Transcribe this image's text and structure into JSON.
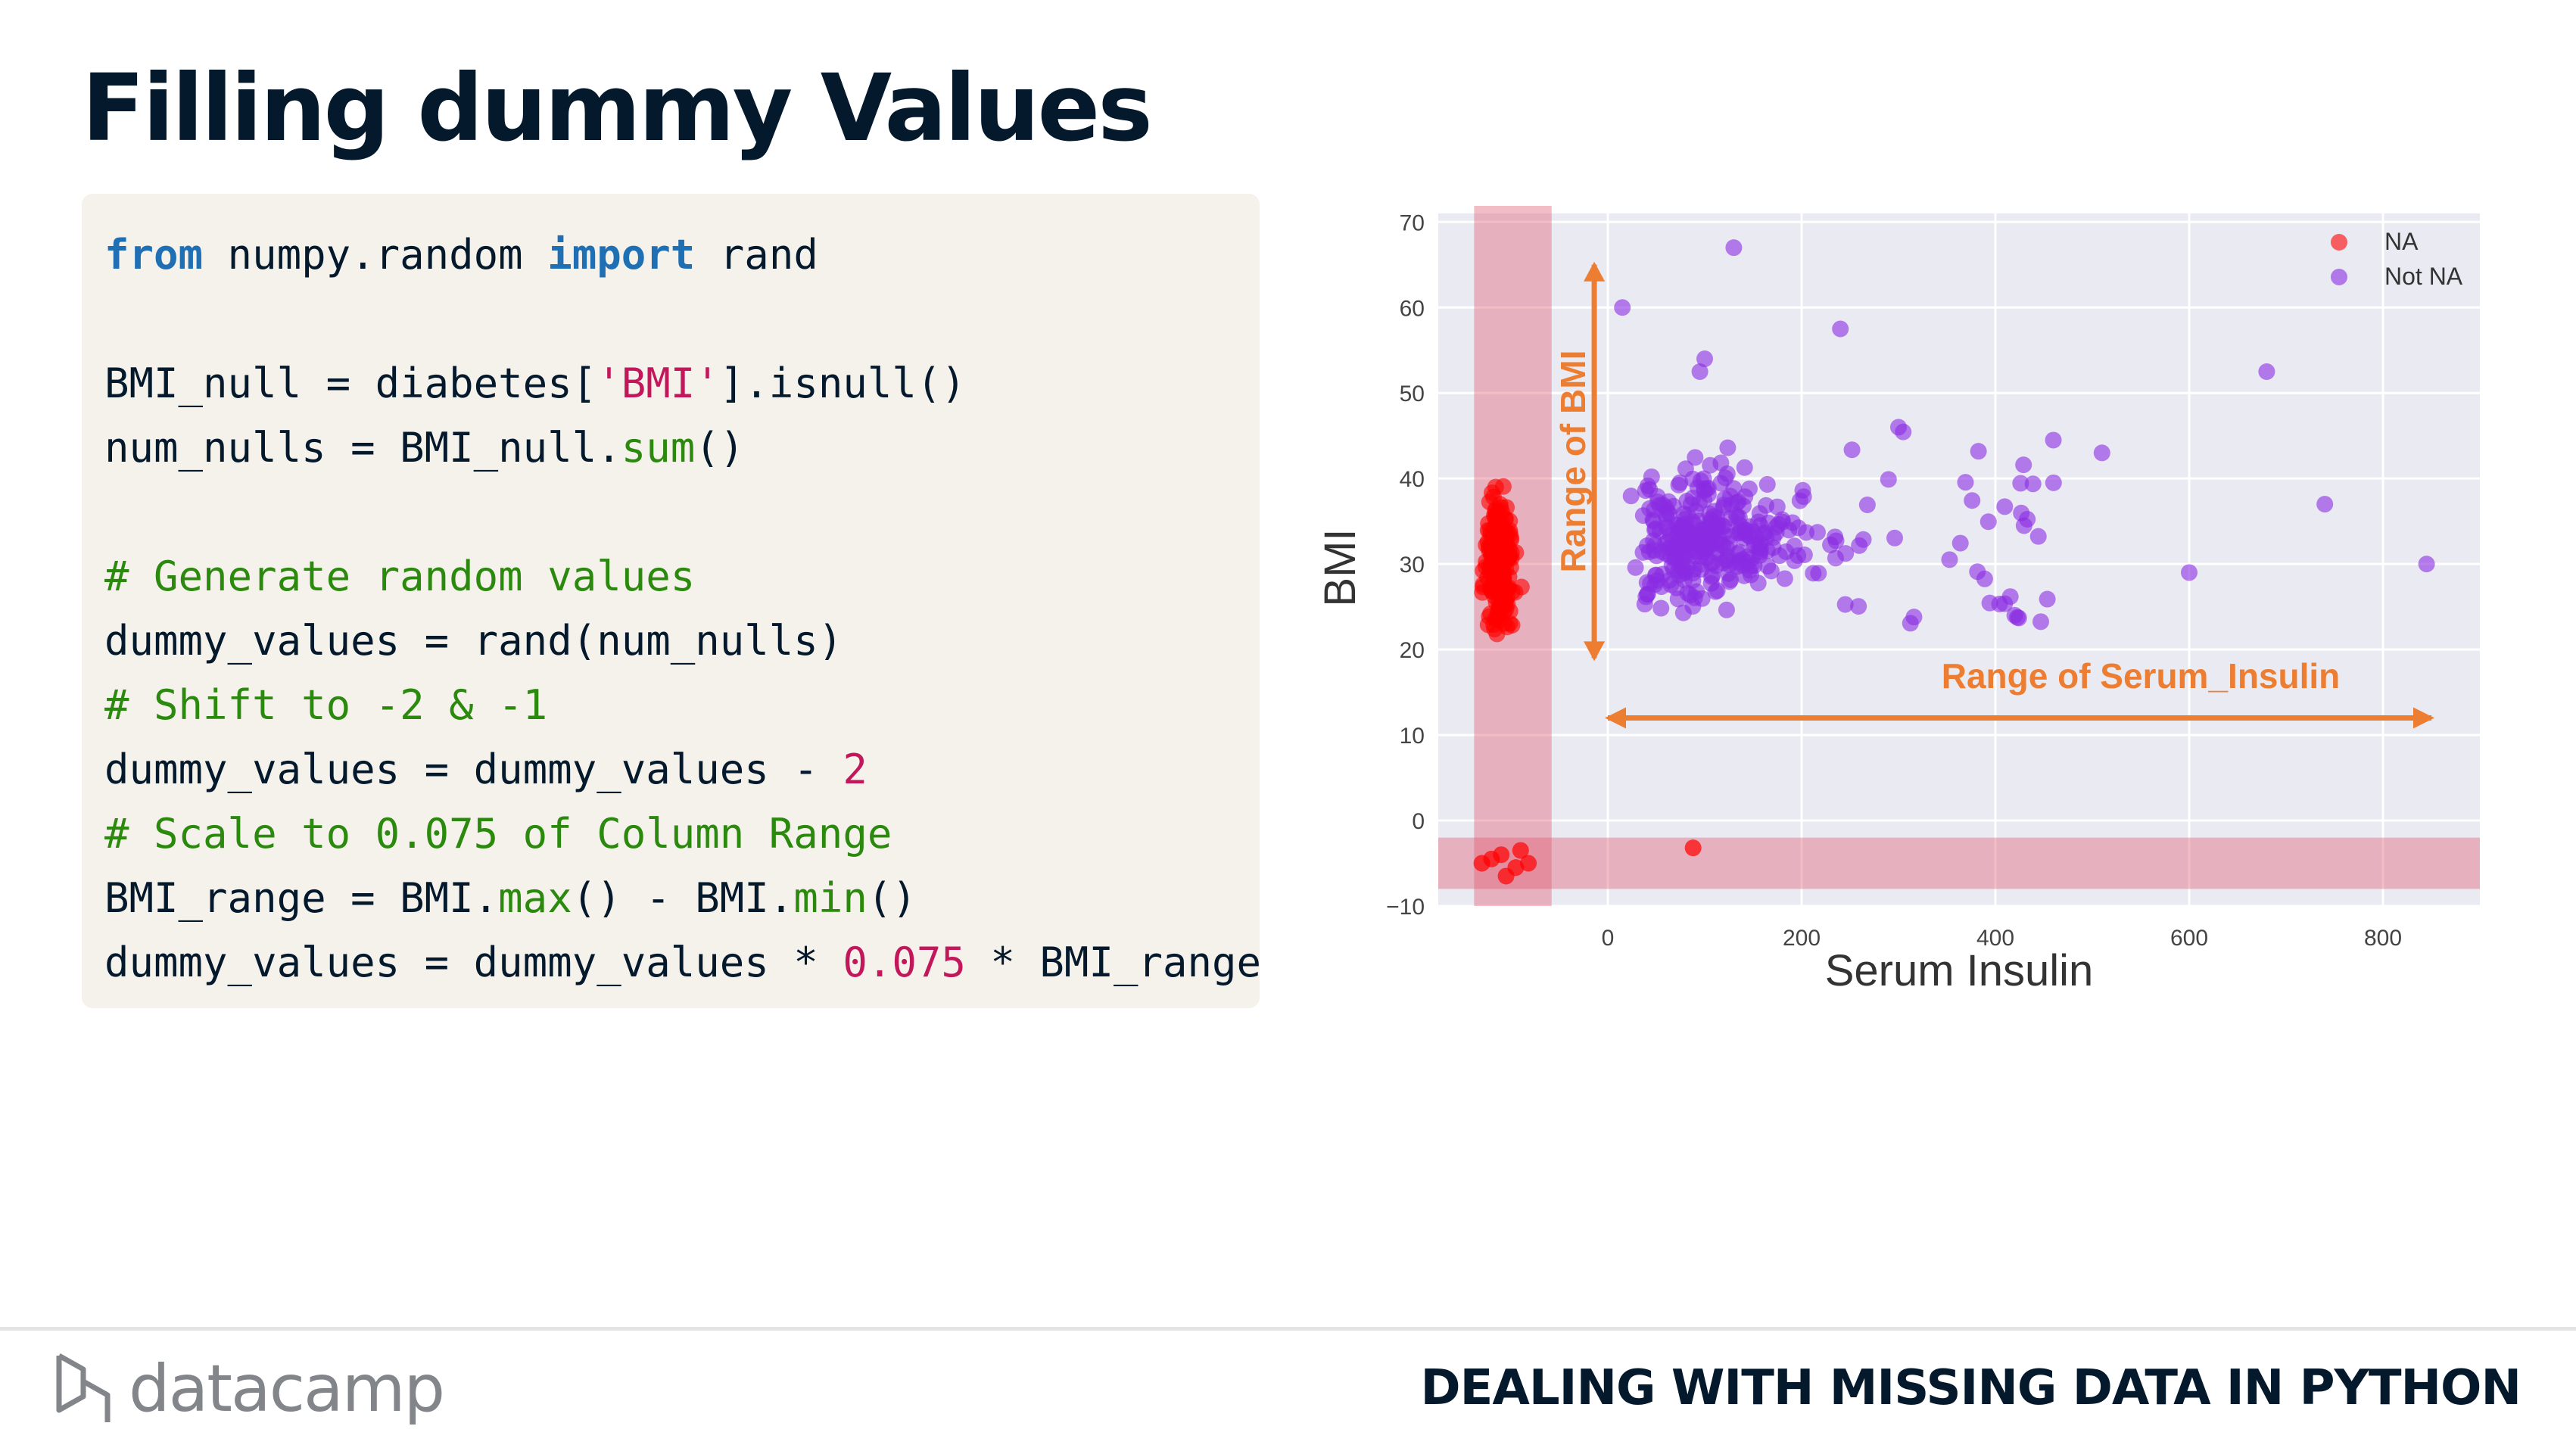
{
  "slide": {
    "title": "Filling dummy Values",
    "footer_title": "DEALING WITH MISSING DATA IN PYTHON",
    "logo_text": "datacamp"
  },
  "code": {
    "lines": [
      [
        {
          "t": "from",
          "c": "kw"
        },
        {
          "t": " numpy.random "
        },
        {
          "t": "import",
          "c": "kw"
        },
        {
          "t": " rand"
        }
      ],
      [],
      [
        {
          "t": "BMI_null = diabetes["
        },
        {
          "t": "'BMI'",
          "c": "str"
        },
        {
          "t": "].isnull()"
        }
      ],
      [
        {
          "t": "num_nulls = BMI_null."
        },
        {
          "t": "sum",
          "c": "fn"
        },
        {
          "t": "()"
        }
      ],
      [],
      [
        {
          "t": "# Generate random values",
          "c": "com"
        }
      ],
      [
        {
          "t": "dummy_values = rand(num_nulls)"
        }
      ],
      [
        {
          "t": "# Shift to -2 & -1",
          "c": "com"
        }
      ],
      [
        {
          "t": "dummy_values = dummy_values - "
        },
        {
          "t": "2",
          "c": "num"
        }
      ],
      [
        {
          "t": "# Scale to 0.075 of Column Range",
          "c": "com"
        }
      ],
      [
        {
          "t": "BMI_range = BMI."
        },
        {
          "t": "max",
          "c": "fn"
        },
        {
          "t": "() - BMI."
        },
        {
          "t": "min",
          "c": "fn"
        },
        {
          "t": "()"
        }
      ],
      [
        {
          "t": "dummy_values = dummy_values * "
        },
        {
          "t": "0.075",
          "c": "num"
        },
        {
          "t": " * BMI_range"
        }
      ]
    ]
  },
  "chart_data": {
    "type": "scatter",
    "xlabel": "Serum Insulin",
    "ylabel": "BMI",
    "xlim": [
      -175,
      900
    ],
    "ylim": [
      -10,
      71
    ],
    "xticks": [
      0,
      200,
      400,
      600,
      800
    ],
    "yticks": [
      -10,
      0,
      10,
      20,
      30,
      40,
      50,
      60,
      70
    ],
    "grid": true,
    "legend_position": "top-right",
    "series": [
      {
        "name": "NA",
        "color": "#ff0000",
        "values": "bmi_na"
      },
      {
        "name": "Not NA",
        "color": "#8a2be2",
        "values": "bmi_notna"
      }
    ],
    "annotations": {
      "bmi_range_label": "Range of BMI",
      "insulin_range_label": "Range of Serum_Insulin",
      "arrow_color": "#ed7d31",
      "band_color": "#e05a70"
    }
  }
}
